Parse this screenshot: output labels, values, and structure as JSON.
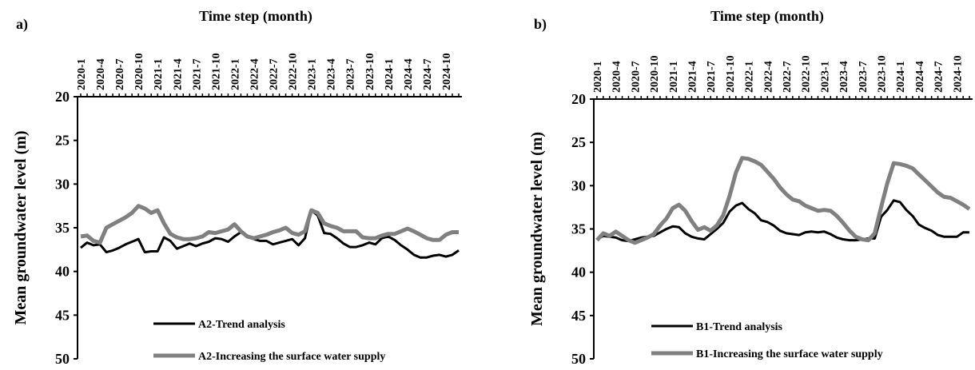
{
  "chart_data": [
    {
      "type": "line",
      "panel": "a)",
      "title": "Time step (month)",
      "ylabel": "Mean groundwater level (m)",
      "x_axis_position": "top",
      "y_inverted": true,
      "ylim": [
        20,
        50
      ],
      "yticks": [
        20,
        25,
        30,
        35,
        40,
        45,
        50
      ],
      "legend": "bottom-left",
      "categories": [
        "2020-1",
        null,
        null,
        "2020-4",
        null,
        null,
        "2020-7",
        null,
        null,
        "2020-10",
        null,
        null,
        "2021-1",
        null,
        null,
        "2021-4",
        null,
        null,
        "2021-7",
        null,
        null,
        "2021-10",
        null,
        null,
        "2022-1",
        null,
        null,
        "2022-4",
        null,
        null,
        "2022-7",
        null,
        null,
        "2022-10",
        null,
        null,
        "2023-1",
        null,
        null,
        "2023-4",
        null,
        null,
        "2023-7",
        null,
        null,
        "2023-10",
        null,
        null,
        "2024-1",
        null,
        null,
        "2024-4",
        null,
        null,
        "2024-7",
        null,
        null,
        "2024-10",
        null,
        null
      ],
      "series": [
        {
          "name": "A2-Trend analysis",
          "color": "#000000",
          "values": [
            37.3,
            36.7,
            37.0,
            36.9,
            37.8,
            37.6,
            37.3,
            36.9,
            36.6,
            36.3,
            37.8,
            37.7,
            37.7,
            36.1,
            36.5,
            37.4,
            37.1,
            36.8,
            37.1,
            36.8,
            36.6,
            36.2,
            36.3,
            36.6,
            36.0,
            35.5,
            35.9,
            36.3,
            36.5,
            36.5,
            36.9,
            36.7,
            36.5,
            36.3,
            37.0,
            36.2,
            33.0,
            33.6,
            35.6,
            35.7,
            36.2,
            36.8,
            37.2,
            37.2,
            37.0,
            36.7,
            36.9,
            36.2,
            36.0,
            36.4,
            37.0,
            37.5,
            38.1,
            38.4,
            38.4,
            38.2,
            38.1,
            38.3,
            38.1,
            37.6
          ]
        },
        {
          "name": "A2-Increasing the surface water supply",
          "color": "#808080",
          "values": [
            36.0,
            35.9,
            36.5,
            36.7,
            35.0,
            34.6,
            34.2,
            33.8,
            33.3,
            32.5,
            32.8,
            33.3,
            33.0,
            34.5,
            35.7,
            36.1,
            36.3,
            36.3,
            36.2,
            36.0,
            35.5,
            35.6,
            35.4,
            35.2,
            34.6,
            35.4,
            36.0,
            36.2,
            36.0,
            35.8,
            35.5,
            35.3,
            35.0,
            35.6,
            35.8,
            35.4,
            33.0,
            33.3,
            34.5,
            34.8,
            35.0,
            35.4,
            35.4,
            35.4,
            36.1,
            36.2,
            36.2,
            35.9,
            35.7,
            35.7,
            35.4,
            35.1,
            35.4,
            35.8,
            36.2,
            36.4,
            36.4,
            35.8,
            35.5,
            35.5
          ]
        }
      ]
    },
    {
      "type": "line",
      "panel": "b)",
      "title": "Time step (month)",
      "ylabel": "Mean groundwater level (m)",
      "x_axis_position": "top",
      "y_inverted": true,
      "ylim": [
        20,
        50
      ],
      "yticks": [
        20,
        25,
        30,
        35,
        40,
        45,
        50
      ],
      "legend": "bottom-left",
      "categories": [
        "2020-1",
        null,
        null,
        "2020-4",
        null,
        null,
        "2020-7",
        null,
        null,
        "2020-10",
        null,
        null,
        "2021-1",
        null,
        null,
        "2021-4",
        null,
        null,
        "2021-7",
        null,
        null,
        "2021-10",
        null,
        null,
        "2022-1",
        null,
        null,
        "2022-4",
        null,
        null,
        "2022-7",
        null,
        null,
        "2022-10",
        null,
        null,
        "2023-1",
        null,
        null,
        "2023-4",
        null,
        null,
        "2023-7",
        null,
        null,
        "2023-10",
        null,
        null,
        "2024-1",
        null,
        null,
        "2024-4",
        null,
        null,
        "2024-7",
        null,
        null,
        "2024-10",
        null,
        null
      ],
      "series": [
        {
          "name": "B1-Trend analysis",
          "color": "#000000",
          "values": [
            36.2,
            35.8,
            35.9,
            36.0,
            36.3,
            36.4,
            36.2,
            36.0,
            35.9,
            35.8,
            35.4,
            35.0,
            34.7,
            34.8,
            35.5,
            35.9,
            36.1,
            36.2,
            35.6,
            35.0,
            34.3,
            33.0,
            32.3,
            32.0,
            32.7,
            33.2,
            34.0,
            34.2,
            34.6,
            35.2,
            35.5,
            35.6,
            35.7,
            35.4,
            35.3,
            35.4,
            35.3,
            35.6,
            36.0,
            36.2,
            36.3,
            36.3,
            36.2,
            36.1,
            36.1,
            33.6,
            32.8,
            31.7,
            31.9,
            32.8,
            33.5,
            34.5,
            34.9,
            35.2,
            35.7,
            35.9,
            35.9,
            35.9,
            35.4,
            35.4
          ]
        },
        {
          "name": "B1-Increasing the surface water supply",
          "color": "#808080",
          "values": [
            36.3,
            35.5,
            35.8,
            35.3,
            35.8,
            36.3,
            36.6,
            36.3,
            36.0,
            35.6,
            34.6,
            33.8,
            32.6,
            32.2,
            32.9,
            34.1,
            35.1,
            34.8,
            35.2,
            34.6,
            33.4,
            31.2,
            28.5,
            26.8,
            26.9,
            27.2,
            27.6,
            28.4,
            29.2,
            30.2,
            31.0,
            31.6,
            31.8,
            32.3,
            32.6,
            32.9,
            32.8,
            32.9,
            33.5,
            34.3,
            35.2,
            35.9,
            36.2,
            36.3,
            35.5,
            32.5,
            29.7,
            27.4,
            27.5,
            27.7,
            28.0,
            28.7,
            29.4,
            30.1,
            30.8,
            31.3,
            31.4,
            31.8,
            32.2,
            32.7
          ]
        }
      ]
    }
  ]
}
